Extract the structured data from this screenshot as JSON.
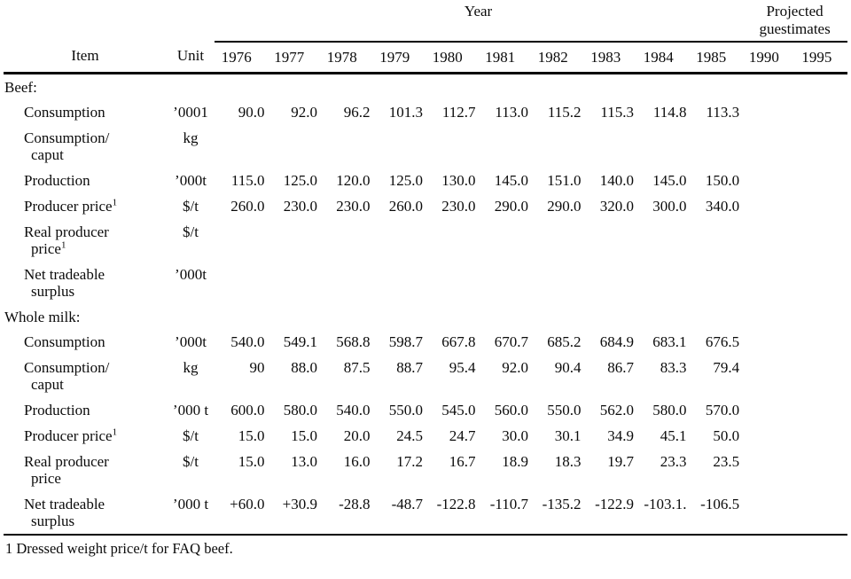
{
  "page": {
    "footnote": "1 Dressed weight price/t for FAQ beef."
  },
  "table": {
    "headers": {
      "item": "Item",
      "unit": "Unit",
      "year_group": "Year",
      "projected_group": "Projected guestimates",
      "years": [
        "1976",
        "1977",
        "1978",
        "1979",
        "1980",
        "1981",
        "1982",
        "1983",
        "1984",
        "1985",
        "1990",
        "1995"
      ]
    },
    "sections": [
      {
        "title": "Beef:",
        "rows": [
          {
            "item": "Consumption",
            "unit": "’0001",
            "values": [
              "90.0",
              "92.0",
              "96.2",
              "101.3",
              "112.7",
              "113.0",
              "115.2",
              "115.3",
              "114.8",
              "113.3",
              "",
              ""
            ]
          },
          {
            "item": "Consumption/",
            "item2": "caput",
            "unit": "kg",
            "values": [
              "",
              "",
              "",
              "",
              "",
              "",
              "",
              "",
              "",
              "",
              "",
              ""
            ]
          },
          {
            "item": "Production",
            "unit": "’000t",
            "values": [
              "115.0",
              "125.0",
              "120.0",
              "125.0",
              "130.0",
              "145.0",
              "151.0",
              "140.0",
              "145.0",
              "150.0",
              "",
              ""
            ]
          },
          {
            "item": "Producer price",
            "sup": "1",
            "unit": "$/t",
            "values": [
              "260.0",
              "230.0",
              "230.0",
              "260.0",
              "230.0",
              "290.0",
              "290.0",
              "320.0",
              "300.0",
              "340.0",
              "",
              ""
            ]
          },
          {
            "item": "Real producer",
            "item2": "price",
            "sup2": "1",
            "unit": "$/t",
            "values": [
              "",
              "",
              "",
              "",
              "",
              "",
              "",
              "",
              "",
              "",
              "",
              ""
            ]
          },
          {
            "item": "Net tradeable",
            "item2": "surplus",
            "unit": "’000t",
            "values": [
              "",
              "",
              "",
              "",
              "",
              "",
              "",
              "",
              "",
              "",
              "",
              ""
            ]
          }
        ]
      },
      {
        "title": "Whole milk:",
        "rows": [
          {
            "item": "Consumption",
            "unit": "’000t",
            "values": [
              "540.0",
              "549.1",
              "568.8",
              "598.7",
              "667.8",
              "670.7",
              "685.2",
              "684.9",
              "683.1",
              "676.5",
              "",
              ""
            ]
          },
          {
            "item": "Consumption/",
            "item2": "caput",
            "unit": "kg",
            "values": [
              "90",
              "88.0",
              "87.5",
              "88.7",
              "95.4",
              "92.0",
              "90.4",
              "86.7",
              "83.3",
              "79.4",
              "",
              ""
            ]
          },
          {
            "item": "Production",
            "unit": "’000 t",
            "values": [
              "600.0",
              "580.0",
              "540.0",
              "550.0",
              "545.0",
              "560.0",
              "550.0",
              "562.0",
              "580.0",
              "570.0",
              "",
              ""
            ]
          },
          {
            "item": "Producer price",
            "sup": "1",
            "unit": "$/t",
            "values": [
              "15.0",
              "15.0",
              "20.0",
              "24.5",
              "24.7",
              "30.0",
              "30.1",
              "34.9",
              "45.1",
              "50.0",
              "",
              ""
            ]
          },
          {
            "item": "Real producer",
            "item2": "price",
            "unit": "$/t",
            "values": [
              "15.0",
              "13.0",
              "16.0",
              "17.2",
              "16.7",
              "18.9",
              "18.3",
              "19.7",
              "23.3",
              "23.5",
              "",
              ""
            ]
          },
          {
            "item": "Net tradeable",
            "item2": "surplus",
            "unit": "’000 t",
            "values": [
              "+60.0",
              "+30.9",
              "-28.8",
              "-48.7",
              "-122.8",
              "-110.7",
              "-135.2",
              "-122.9",
              "-103.1.",
              "-106.5",
              "",
              ""
            ]
          }
        ]
      }
    ]
  }
}
